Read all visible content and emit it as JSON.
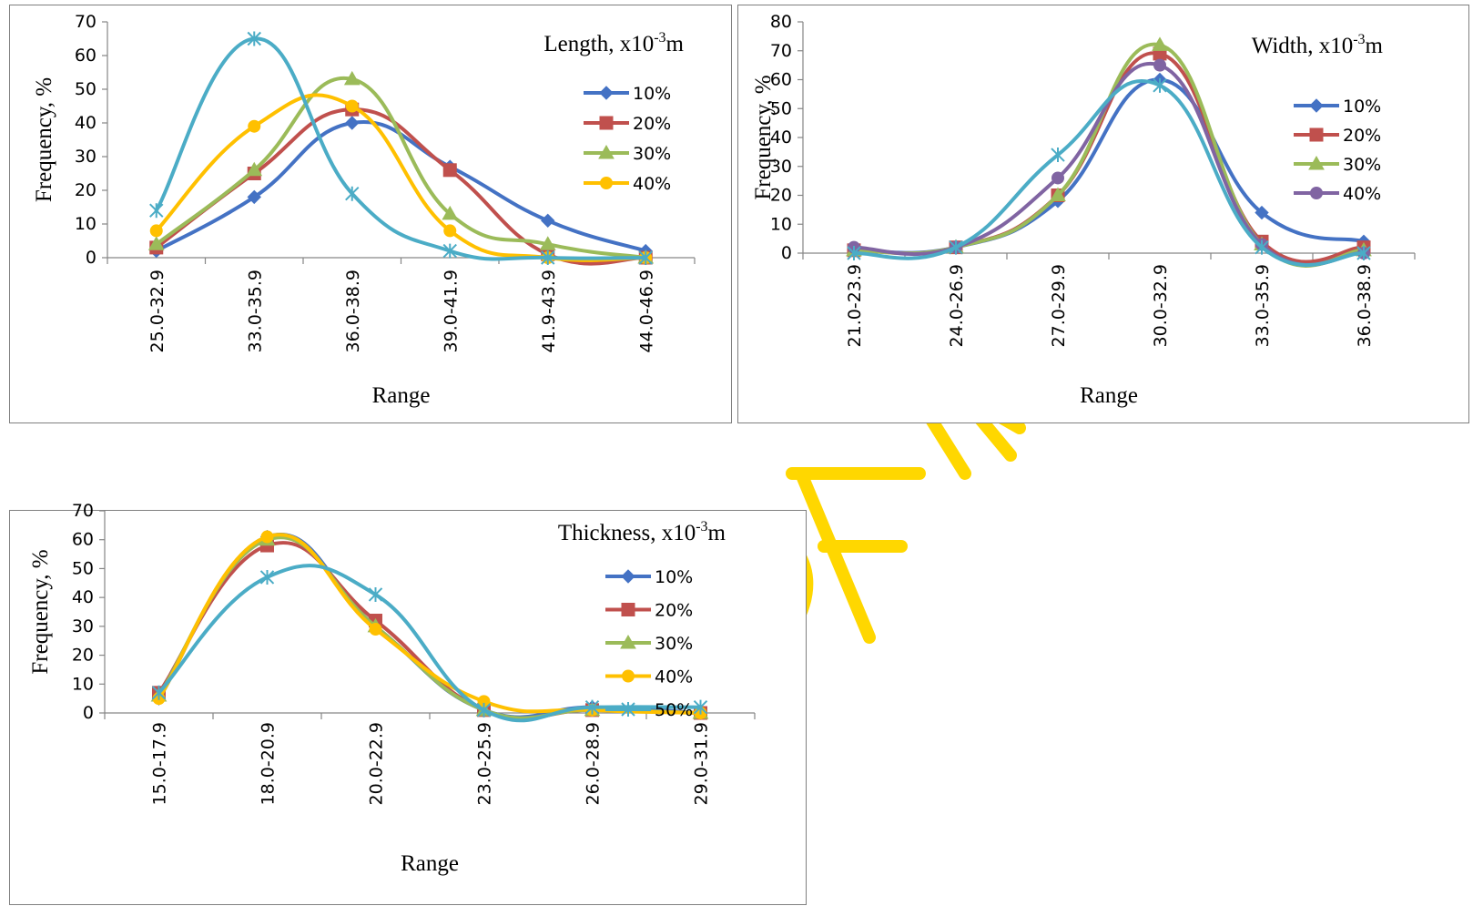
{
  "chart_data": [
    {
      "id": "length",
      "type": "line",
      "title": "Length, x10",
      "title_sup": "-3",
      "title_suffix": "m",
      "xlabel": "Range",
      "ylabel": "Frequency, %",
      "ylim": [
        0,
        70
      ],
      "ytick_step": 10,
      "yticks": [
        "0",
        "10",
        "20",
        "30",
        "40",
        "50",
        "60",
        "70"
      ],
      "categories": [
        "25.0-32.9",
        "33.0-35.9",
        "36.0-38.9",
        "39.0-41.9",
        "41.9-43.9",
        "44.0-46.9"
      ],
      "series": [
        {
          "name": "10%",
          "color": "#4472C4",
          "marker": "diamond",
          "values": [
            2,
            18,
            40,
            27,
            11,
            2
          ]
        },
        {
          "name": "20%",
          "color": "#C0504D",
          "marker": "square",
          "values": [
            3,
            25,
            44,
            26,
            1,
            0
          ]
        },
        {
          "name": "30%",
          "color": "#9BBB59",
          "marker": "triangle",
          "values": [
            4,
            26,
            53,
            13,
            4,
            0
          ]
        },
        {
          "name": "40%",
          "color": "#FFC000",
          "marker": "circle",
          "values": [
            8,
            39,
            45,
            8,
            0,
            0
          ]
        },
        {
          "color": "#4BACC6",
          "marker": "star",
          "values": [
            14,
            65,
            19,
            2,
            0,
            0
          ]
        }
      ],
      "legend_series": [
        0,
        1,
        2,
        3
      ]
    },
    {
      "id": "width",
      "type": "line",
      "title": "Width, x10",
      "title_sup": "-3",
      "title_suffix": "m",
      "xlabel": "Range",
      "ylabel": "Frequency, %",
      "ylim": [
        0,
        80
      ],
      "ytick_step": 10,
      "yticks": [
        "0",
        "10",
        "20",
        "30",
        "40",
        "50",
        "60",
        "70",
        "80"
      ],
      "categories": [
        "21.0-23.9",
        "24.0-26.9",
        "27.0-29.9",
        "30.0-32.9",
        "33.0-35.9",
        "36.0-38.9"
      ],
      "series": [
        {
          "name": "10%",
          "color": "#4472C4",
          "marker": "diamond",
          "values": [
            1,
            2,
            18,
            60,
            14,
            4
          ]
        },
        {
          "name": "20%",
          "color": "#C0504D",
          "marker": "square",
          "values": [
            1,
            2,
            20,
            69,
            4,
            2
          ]
        },
        {
          "name": "30%",
          "color": "#9BBB59",
          "marker": "triangle",
          "values": [
            1,
            2,
            20,
            72,
            3,
            1
          ]
        },
        {
          "name": "40%",
          "color": "#8064A2",
          "marker": "circle",
          "values": [
            2,
            2,
            26,
            65,
            3,
            0
          ]
        },
        {
          "color": "#4BACC6",
          "marker": "star",
          "values": [
            0,
            2,
            34,
            58,
            2,
            0
          ]
        }
      ],
      "legend_series": [
        0,
        1,
        2,
        3
      ]
    },
    {
      "id": "thickness",
      "type": "line",
      "title": "Thickness, x10",
      "title_sup": "-3",
      "title_suffix": "m",
      "xlabel": "Range",
      "ylabel": "Frequency, %",
      "ylim": [
        0,
        70
      ],
      "ytick_step": 10,
      "yticks": [
        "0",
        "10",
        "20",
        "30",
        "40",
        "50",
        "60",
        "70"
      ],
      "categories": [
        "15.0-17.9",
        "18.0-20.9",
        "20.0-22.9",
        "23.0-25.9",
        "26.0-28.9",
        "29.0-31.9"
      ],
      "series": [
        {
          "name": "10%",
          "color": "#4472C4",
          "marker": "diamond",
          "values": [
            5,
            61,
            30,
            1,
            2,
            0
          ]
        },
        {
          "name": "20%",
          "color": "#C0504D",
          "marker": "square",
          "values": [
            7,
            58,
            32,
            1,
            1,
            0
          ]
        },
        {
          "name": "30%",
          "color": "#9BBB59",
          "marker": "triangle",
          "values": [
            6,
            60,
            30,
            1,
            1,
            0
          ]
        },
        {
          "name": "40%",
          "color": "#FFC000",
          "marker": "circle",
          "values": [
            5,
            61,
            29,
            4,
            1,
            0
          ]
        },
        {
          "name": "50%",
          "color": "#4BACC6",
          "marker": "star",
          "values": [
            7,
            47,
            41,
            1,
            2,
            2
          ]
        }
      ],
      "legend_series": [
        0,
        1,
        2,
        3,
        4
      ]
    }
  ],
  "watermark": {
    "color": "#FFD700"
  }
}
